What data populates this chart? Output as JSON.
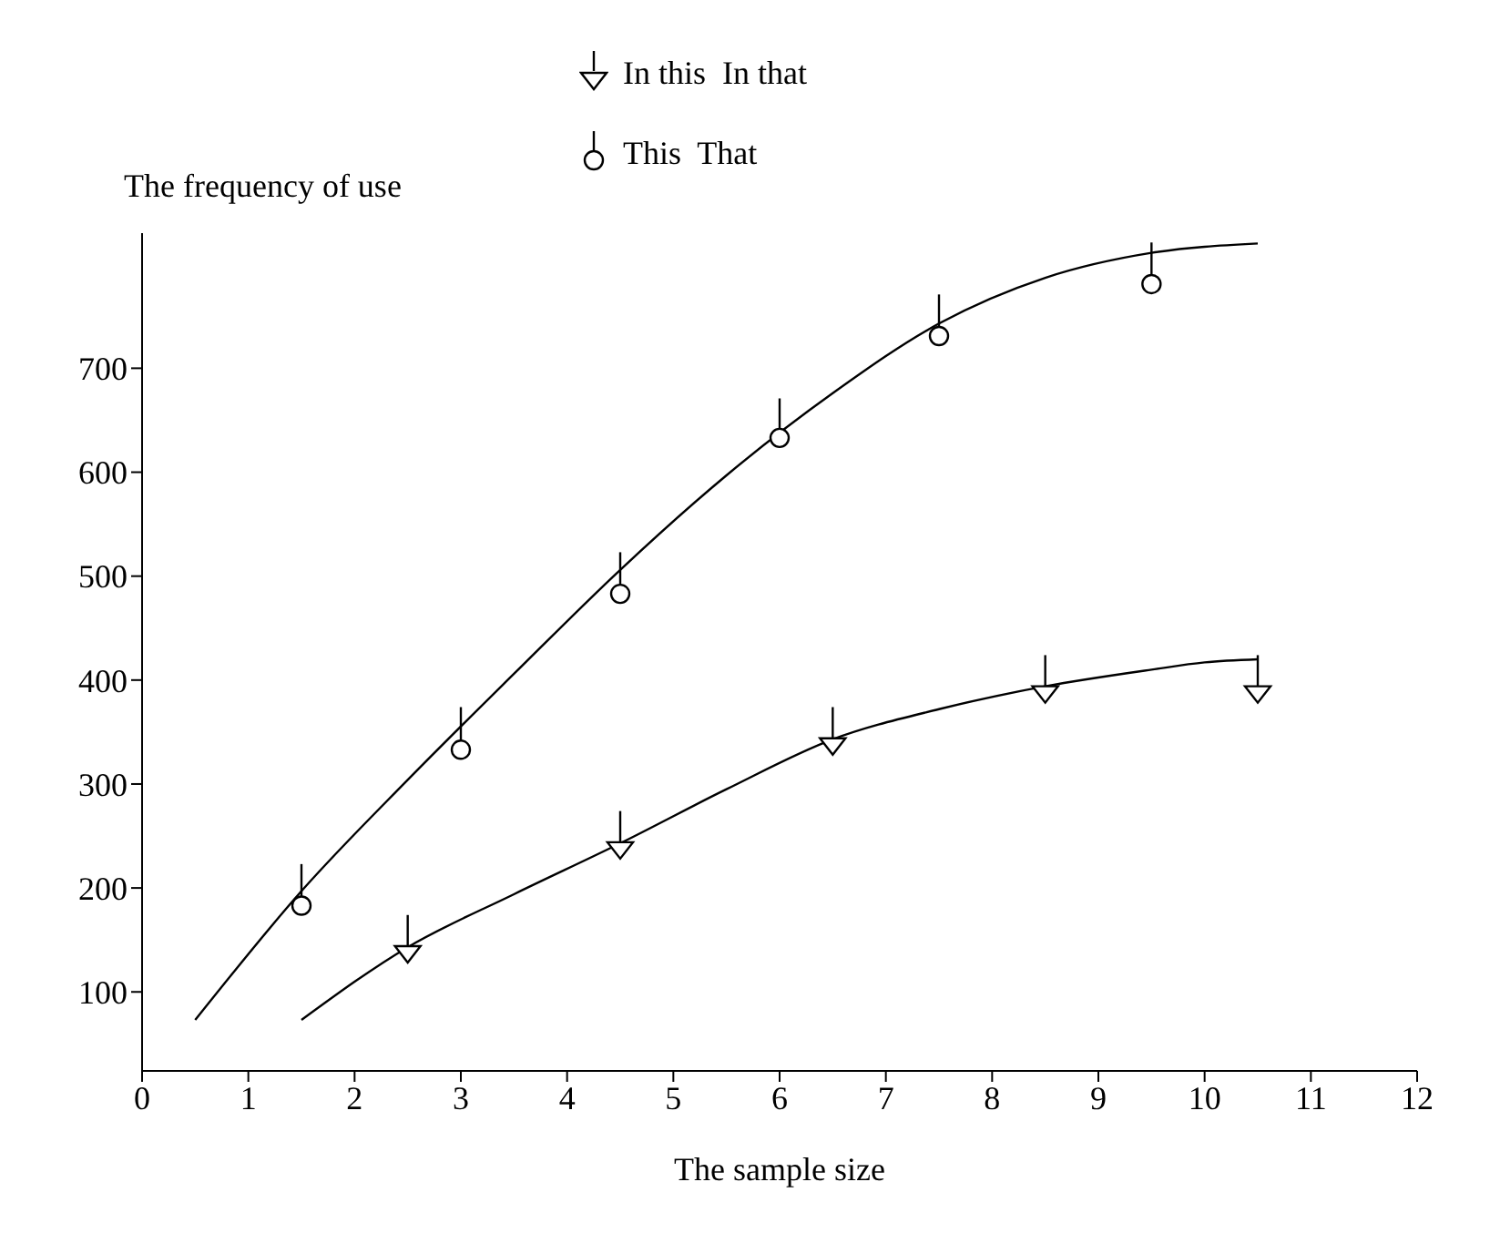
{
  "chart_data": {
    "type": "scatter",
    "xlabel": "The sample size",
    "ylabel": "The frequency of use",
    "xlim": [
      0,
      12
    ],
    "xticks": [
      0,
      1,
      2,
      3,
      4,
      5,
      6,
      7,
      8,
      9,
      10,
      11,
      12
    ],
    "ylim": [
      24,
      830
    ],
    "yticks": [
      100,
      200,
      300,
      400,
      500,
      600,
      700
    ],
    "grid": false,
    "legend": "top",
    "series": [
      {
        "name": "In this  In that",
        "marker": "triangle",
        "color": "#000000",
        "x": [
          2.5,
          4.5,
          6.5,
          8.5,
          10.5
        ],
        "values": [
          137,
          237,
          337,
          387,
          387
        ],
        "errors": [
          [
            137,
            174
          ],
          [
            237,
            274
          ],
          [
            337,
            374
          ],
          [
            387,
            424
          ],
          [
            387,
            424
          ]
        ]
      },
      {
        "name": "This  That",
        "marker": "circle",
        "color": "#000000",
        "x": [
          1.5,
          3,
          4.5,
          6,
          7.5,
          9.5
        ],
        "values": [
          183,
          333,
          483,
          633,
          731,
          781
        ],
        "errors": [
          [
            183,
            223
          ],
          [
            333,
            374
          ],
          [
            483,
            523
          ],
          [
            633,
            671
          ],
          [
            731,
            771
          ],
          [
            781,
            821
          ]
        ]
      },
      {
        "type": "line",
        "marker": "none",
        "color": "#000000",
        "x": [
          0.5,
          1.5,
          2.5,
          3.5,
          4.5,
          5.5,
          6.5,
          7.5,
          8.5,
          9.5,
          10.5
        ],
        "values": [
          73,
          197,
          304,
          406,
          506,
          597,
          676,
          743,
          787,
          811,
          820
        ]
      },
      {
        "type": "line",
        "marker": "none",
        "color": "#000000",
        "x": [
          1.5,
          2.5,
          3.5,
          4.5,
          5.5,
          6.5,
          7.5,
          8.5,
          9.5,
          10,
          10.5
        ],
        "values": [
          73,
          143,
          194,
          243,
          295,
          343,
          372,
          394,
          410,
          417,
          420
        ]
      }
    ]
  }
}
